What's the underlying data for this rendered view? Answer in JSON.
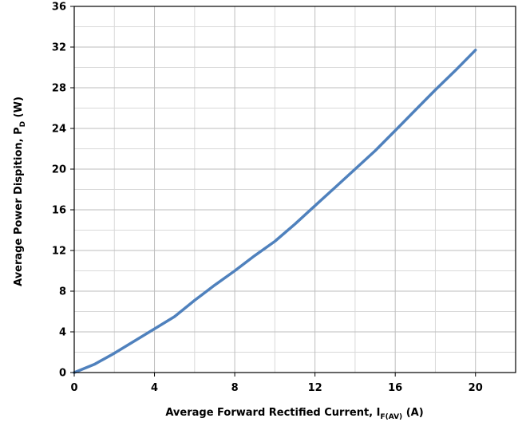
{
  "chart_data": {
    "type": "line",
    "title": "",
    "xlabel": {
      "main": "Average Forward Rectified Current, I",
      "sub": "F(AV)",
      "unit": " (A)"
    },
    "ylabel": {
      "main": "Average Power Dispition, P",
      "sub": "D",
      "unit": " (W)"
    },
    "xlim": [
      0,
      22
    ],
    "ylim": [
      0,
      36
    ],
    "x_ticks": [
      0,
      4,
      8,
      12,
      16,
      20
    ],
    "y_ticks": [
      0,
      4,
      8,
      12,
      16,
      20,
      24,
      28,
      32,
      36
    ],
    "x_grid_step": 2,
    "y_grid_step": 2,
    "grid": true,
    "series": [
      {
        "color": "#4f81bd",
        "x": [
          0,
          1,
          2,
          3,
          4,
          5,
          6,
          7,
          8,
          9,
          10,
          11,
          12,
          13,
          14,
          15,
          16,
          17,
          18,
          19,
          20
        ],
        "y": [
          0,
          0.8,
          1.9,
          3.1,
          4.3,
          5.5,
          7.1,
          8.6,
          10.0,
          11.5,
          12.9,
          14.6,
          16.4,
          18.2,
          20.0,
          21.8,
          23.8,
          25.8,
          27.8,
          29.7,
          31.7
        ]
      }
    ]
  }
}
